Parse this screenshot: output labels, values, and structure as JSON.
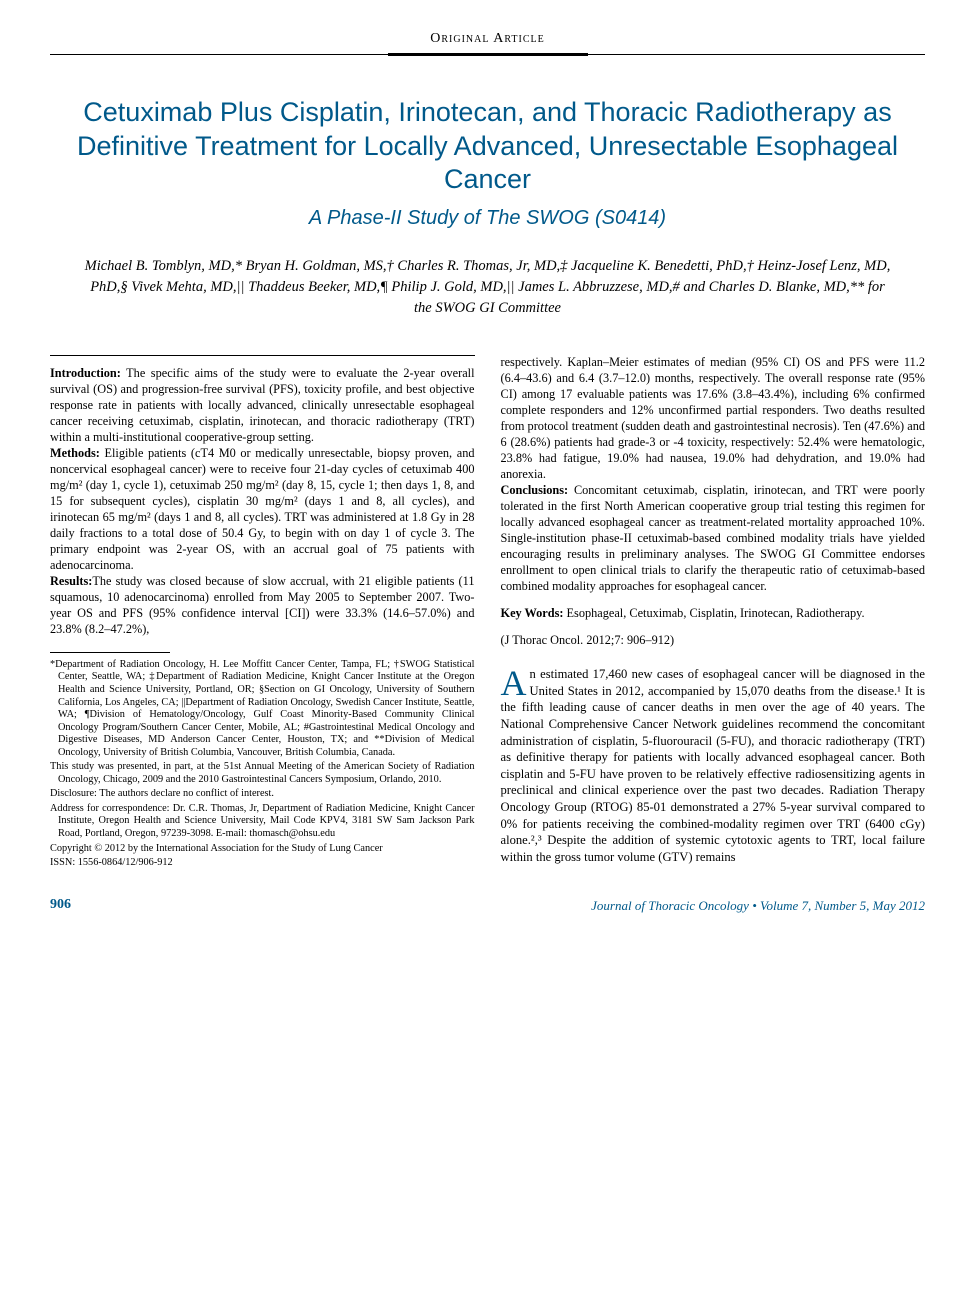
{
  "colors": {
    "accent": "#00598a",
    "text": "#000000",
    "background": "#ffffff"
  },
  "header": {
    "label": "Original Article"
  },
  "title": "Cetuximab Plus Cisplatin, Irinotecan, and Thoracic Radiotherapy as Definitive Treatment for Locally Advanced, Unresectable Esophageal Cancer",
  "subtitle": "A Phase-II Study of The SWOG (S0414)",
  "authors": "Michael B. Tomblyn, MD,* Bryan H. Goldman, MS,† Charles R. Thomas, Jr, MD,‡ Jacqueline K. Benedetti, PhD,† Heinz-Josef Lenz, MD, PhD,§ Vivek Mehta, MD,|| Thaddeus Beeker, MD,¶ Philip J. Gold, MD,|| James L. Abbruzzese, MD,# and Charles D. Blanke, MD,** for the SWOG GI Committee",
  "abstract": {
    "introduction": {
      "label": "Introduction:",
      "text": " The specific aims of the study were to evaluate the 2-year overall survival (OS) and progression-free survival (PFS), toxicity profile, and best objective response rate in patients with locally advanced, clinically unresectable esophageal cancer receiving cetuximab, cisplatin, irinotecan, and thoracic radiotherapy (TRT) within a multi-institutional cooperative-group setting."
    },
    "methods": {
      "label": "Methods:",
      "text": " Eligible patients (cT4 M0 or medically unresectable, biopsy proven, and noncervical esophageal cancer) were to receive four 21-day cycles of cetuximab 400 mg/m² (day 1, cycle 1), cetuximab 250 mg/m² (day 8, 15, cycle 1; then days 1, 8, and 15 for subsequent cycles), cisplatin 30 mg/m² (days 1 and 8, all cycles), and irinotecan 65 mg/m² (days 1 and 8, all cycles). TRT was administered at 1.8 Gy in 28 daily fractions to a total dose of 50.4 Gy, to begin with on day 1 of cycle 3. The primary endpoint was 2-year OS, with an accrual goal of 75 patients with adenocarcinoma."
    },
    "results": {
      "label": "Results:",
      "text": " The study was closed because of slow accrual, with 21 eligible patients (11 squamous, 10 adenocarcinoma) enrolled from May 2005 to September 2007. Two-year OS and PFS (95% confidence interval [CI]) were 33.3% (14.6–57.0%) and 23.8% (8.2–47.2%), respectively. Kaplan–Meier estimates of median (95% CI) OS and PFS were 11.2 (6.4–43.6) and 6.4 (3.7–12.0) months, respectively. The overall response rate (95% CI) among 17 evaluable patients was 17.6% (3.8–43.4%), including 6% confirmed complete responders and 12% unconfirmed partial responders. Two deaths resulted from protocol treatment (sudden death and gastrointestinal necrosis). Ten (47.6%) and 6 (28.6%) patients had grade-3 or -4 toxicity, respectively: 52.4% were hematologic, 23.8% had fatigue, 19.0% had nausea, 19.0% had dehydration, and 19.0% had anorexia."
    },
    "conclusions": {
      "label": "Conclusions:",
      "text": " Concomitant cetuximab, cisplatin, irinotecan, and TRT were poorly tolerated in the first North American cooperative group trial testing this regimen for locally advanced esophageal cancer as treatment-related mortality approached 10%. Single-institution phase-II cetuximab-based combined modality trials have yielded encouraging results in preliminary analyses. The SWOG GI Committee endorses enrollment to open clinical trials to clarify the therapeutic ratio of cetuximab-based combined modality approaches for esophageal cancer."
    }
  },
  "keywords": {
    "label": "Key Words:",
    "text": " Esophageal, Cetuximab, Cisplatin, Irinotecan, Radiotherapy."
  },
  "citation": "(J Thorac Oncol. 2012;7: 906–912)",
  "body_first_letter": "A",
  "body_text": "n estimated 17,460 new cases of esophageal cancer will be diagnosed in the United States in 2012, accompanied by 15,070 deaths from the disease.¹ It is the fifth leading cause of cancer deaths in men over the age of 40 years. The National Comprehensive Cancer Network guidelines recommend the concomitant administration of cisplatin, 5-fluorouracil (5-FU), and thoracic radiotherapy (TRT) as definitive therapy for patients with locally advanced esophageal cancer. Both cisplatin and 5-FU have proven to be relatively effective radiosensitizing agents in preclinical and clinical experience over the past two decades. Radiation Therapy Oncology Group (RTOG) 85-01 demonstrated a 27% 5-year survival compared to 0% for patients receiving the combined-modality regimen over TRT (6400 cGy) alone.²,³ Despite the addition of systemic cytotoxic agents to TRT, local failure within the gross tumor volume (GTV) remains",
  "footnotes": {
    "affiliations": "*Department of Radiation Oncology, H. Lee Moffitt Cancer Center, Tampa, FL; †SWOG Statistical Center, Seattle, WA; ‡Department of Radiation Medicine, Knight Cancer Institute at the Oregon Health and Science University, Portland, OR; §Section on GI Oncology, University of Southern California, Los Angeles, CA; ||Department of Radiation Oncology, Swedish Cancer Institute, Seattle, WA; ¶Division of Hematology/Oncology, Gulf Coast Minority-Based Community Clinical Oncology Program/Southern Cancer Center, Mobile, AL; #Gastrointestinal Medical Oncology and Digestive Diseases, MD Anderson Cancer Center, Houston, TX; and **Division of Medical Oncology, University of British Columbia, Vancouver, British Columbia, Canada.",
    "presented": "This study was presented, in part, at the 51st Annual Meeting of the American Society of Radiation Oncology, Chicago, 2009 and the 2010 Gastrointestinal Cancers Symposium, Orlando, 2010.",
    "disclosure": "Disclosure: The authors declare no conflict of interest.",
    "correspondence": "Address for correspondence: Dr. C.R. Thomas, Jr, Department of Radiation Medicine, Knight Cancer Institute, Oregon Health and Science University, Mail Code KPV4, 3181 SW Sam Jackson Park Road, Portland, Oregon, 97239-3098. E-mail: thomasch@ohsu.edu",
    "copyright": "Copyright © 2012 by the International Association for the Study of Lung Cancer",
    "issn": "ISSN: 1556-0864/12/906-912"
  },
  "footer": {
    "page": "906",
    "journal": "Journal of Thoracic Oncology  •  Volume 7, Number 5, May 2012"
  }
}
